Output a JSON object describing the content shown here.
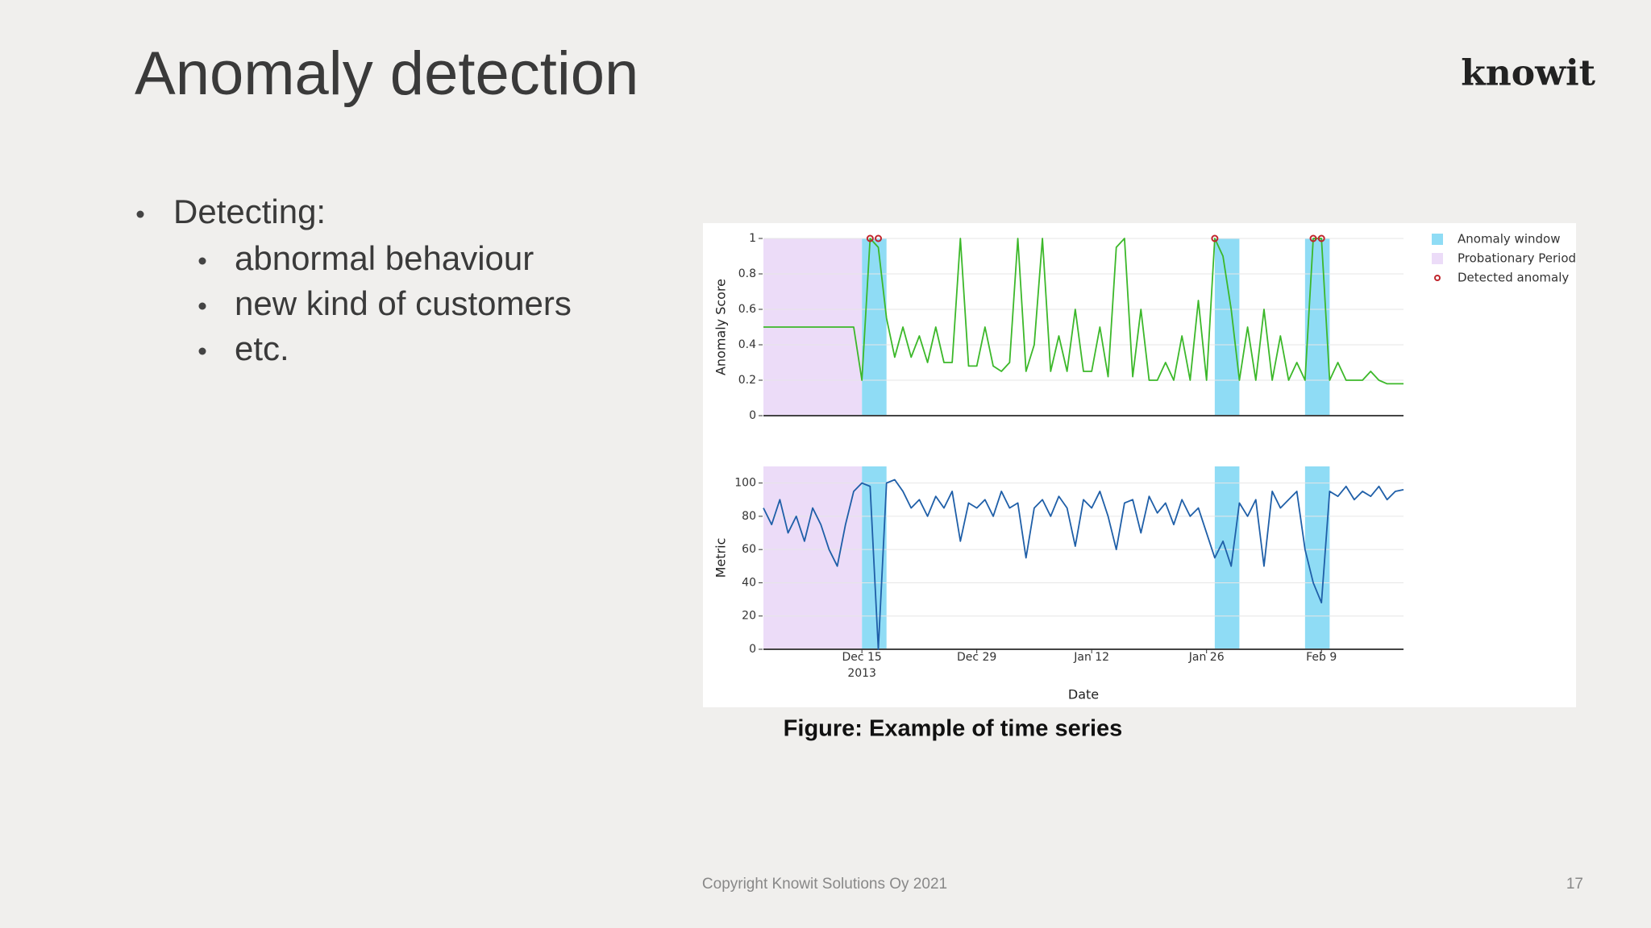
{
  "slide": {
    "title": "Anomaly detection",
    "logo": "knowit",
    "bullets": [
      {
        "text": "Detecting:",
        "items": [
          "abnormal behaviour",
          "new kind of customers",
          "etc."
        ]
      }
    ],
    "caption": "Figure: Example of time series",
    "footer": "Copyright Knowit Solutions Oy 2021",
    "page_number": 17
  },
  "chart_data": [
    {
      "type": "line",
      "ylabel": "Anomaly Score",
      "color": "#3cb82a",
      "legend": "right",
      "xlim": [
        "2013-12-03",
        "2014-02-19"
      ],
      "ylim": [
        0,
        1
      ],
      "yticks": [
        0,
        0.2,
        0.4,
        0.6,
        0.8,
        1
      ],
      "grid": true,
      "regions": [
        {
          "name": "Anomaly window",
          "color": "#8fdcf5",
          "spans": [
            [
              "2013-12-15",
              "2013-12-18"
            ],
            [
              "2014-01-27",
              "2014-01-30"
            ],
            [
              "2014-02-07",
              "2014-02-10"
            ]
          ]
        },
        {
          "name": "Probationary Period",
          "color": "#ecdcf8",
          "spans": [
            [
              "2013-12-03",
              "2013-12-15"
            ]
          ]
        }
      ],
      "markers": {
        "name": "Detected anomaly",
        "color": "#c0262d",
        "x": [
          "2013-12-16",
          "2013-12-17",
          "2014-01-27",
          "2014-02-08",
          "2014-02-09"
        ],
        "values": [
          1,
          1,
          1,
          1,
          1
        ]
      },
      "x": [
        "2013-12-03",
        "2013-12-04",
        "2013-12-05",
        "2013-12-06",
        "2013-12-07",
        "2013-12-08",
        "2013-12-09",
        "2013-12-10",
        "2013-12-11",
        "2013-12-12",
        "2013-12-13",
        "2013-12-14",
        "2013-12-15",
        "2013-12-16",
        "2013-12-17",
        "2013-12-18",
        "2013-12-19",
        "2013-12-20",
        "2013-12-21",
        "2013-12-22",
        "2013-12-23",
        "2013-12-24",
        "2013-12-25",
        "2013-12-26",
        "2013-12-27",
        "2013-12-28",
        "2013-12-29",
        "2013-12-30",
        "2013-12-31",
        "2014-01-01",
        "2014-01-02",
        "2014-01-03",
        "2014-01-04",
        "2014-01-05",
        "2014-01-06",
        "2014-01-07",
        "2014-01-08",
        "2014-01-09",
        "2014-01-10",
        "2014-01-11",
        "2014-01-12",
        "2014-01-13",
        "2014-01-14",
        "2014-01-15",
        "2014-01-16",
        "2014-01-17",
        "2014-01-18",
        "2014-01-19",
        "2014-01-20",
        "2014-01-21",
        "2014-01-22",
        "2014-01-23",
        "2014-01-24",
        "2014-01-25",
        "2014-01-26",
        "2014-01-27",
        "2014-01-28",
        "2014-01-29",
        "2014-01-30",
        "2014-01-31",
        "2014-02-01",
        "2014-02-02",
        "2014-02-03",
        "2014-02-04",
        "2014-02-05",
        "2014-02-06",
        "2014-02-07",
        "2014-02-08",
        "2014-02-09",
        "2014-02-10",
        "2014-02-11",
        "2014-02-12",
        "2014-02-13",
        "2014-02-14",
        "2014-02-15",
        "2014-02-16",
        "2014-02-17",
        "2014-02-18",
        "2014-02-19"
      ],
      "values": [
        0.5,
        0.5,
        0.5,
        0.5,
        0.5,
        0.5,
        0.5,
        0.5,
        0.5,
        0.5,
        0.5,
        0.5,
        0.2,
        1,
        0.95,
        0.55,
        0.33,
        0.5,
        0.33,
        0.45,
        0.3,
        0.5,
        0.3,
        0.3,
        1,
        0.28,
        0.28,
        0.5,
        0.28,
        0.25,
        0.3,
        1,
        0.25,
        0.4,
        1,
        0.25,
        0.45,
        0.25,
        0.6,
        0.25,
        0.25,
        0.5,
        0.22,
        0.95,
        1,
        0.22,
        0.6,
        0.2,
        0.2,
        0.3,
        0.2,
        0.45,
        0.2,
        0.65,
        0.2,
        1,
        0.9,
        0.6,
        0.2,
        0.5,
        0.2,
        0.6,
        0.2,
        0.45,
        0.2,
        0.3,
        0.2,
        1,
        1,
        0.2,
        0.3,
        0.2,
        0.2,
        0.2,
        0.25,
        0.2,
        0.18,
        0.18,
        0.18
      ]
    },
    {
      "type": "line",
      "ylabel": "Metric",
      "xlabel": "Date",
      "color": "#1f5fa8",
      "xlim": [
        "2013-12-03",
        "2014-02-19"
      ],
      "ylim": [
        0,
        110
      ],
      "yticks": [
        0,
        20,
        40,
        60,
        80,
        100
      ],
      "grid": true,
      "xticks": [
        {
          "value": "2013-12-15",
          "label": "Dec 15 2013"
        },
        {
          "value": "2013-12-29",
          "label": "Dec 29"
        },
        {
          "value": "2014-01-12",
          "label": "Jan 12"
        },
        {
          "value": "2014-01-26",
          "label": "Jan 26"
        },
        {
          "value": "2014-02-09",
          "label": "Feb 9"
        }
      ],
      "regions": [
        {
          "color": "#8fdcf5",
          "spans": [
            [
              "2013-12-15",
              "2013-12-18"
            ],
            [
              "2014-01-27",
              "2014-01-30"
            ],
            [
              "2014-02-07",
              "2014-02-10"
            ]
          ]
        },
        {
          "color": "#ecdcf8",
          "spans": [
            [
              "2013-12-03",
              "2013-12-15"
            ]
          ]
        }
      ],
      "x": [
        "2013-12-03",
        "2013-12-04",
        "2013-12-05",
        "2013-12-06",
        "2013-12-07",
        "2013-12-08",
        "2013-12-09",
        "2013-12-10",
        "2013-12-11",
        "2013-12-12",
        "2013-12-13",
        "2013-12-14",
        "2013-12-15",
        "2013-12-16",
        "2013-12-17",
        "2013-12-18",
        "2013-12-19",
        "2013-12-20",
        "2013-12-21",
        "2013-12-22",
        "2013-12-23",
        "2013-12-24",
        "2013-12-25",
        "2013-12-26",
        "2013-12-27",
        "2013-12-28",
        "2013-12-29",
        "2013-12-30",
        "2013-12-31",
        "2014-01-01",
        "2014-01-02",
        "2014-01-03",
        "2014-01-04",
        "2014-01-05",
        "2014-01-06",
        "2014-01-07",
        "2014-01-08",
        "2014-01-09",
        "2014-01-10",
        "2014-01-11",
        "2014-01-12",
        "2014-01-13",
        "2014-01-14",
        "2014-01-15",
        "2014-01-16",
        "2014-01-17",
        "2014-01-18",
        "2014-01-19",
        "2014-01-20",
        "2014-01-21",
        "2014-01-22",
        "2014-01-23",
        "2014-01-24",
        "2014-01-25",
        "2014-01-26",
        "2014-01-27",
        "2014-01-28",
        "2014-01-29",
        "2014-01-30",
        "2014-01-31",
        "2014-02-01",
        "2014-02-02",
        "2014-02-03",
        "2014-02-04",
        "2014-02-05",
        "2014-02-06",
        "2014-02-07",
        "2014-02-08",
        "2014-02-09",
        "2014-02-10",
        "2014-02-11",
        "2014-02-12",
        "2014-02-13",
        "2014-02-14",
        "2014-02-15",
        "2014-02-16",
        "2014-02-17",
        "2014-02-18",
        "2014-02-19"
      ],
      "values": [
        85,
        75,
        90,
        70,
        80,
        65,
        85,
        75,
        60,
        50,
        75,
        95,
        100,
        98,
        0,
        100,
        102,
        95,
        85,
        90,
        80,
        92,
        85,
        95,
        65,
        88,
        85,
        90,
        80,
        95,
        85,
        88,
        55,
        85,
        90,
        80,
        92,
        85,
        62,
        90,
        85,
        95,
        80,
        60,
        88,
        90,
        70,
        92,
        82,
        88,
        75,
        90,
        80,
        85,
        70,
        55,
        65,
        50,
        88,
        80,
        90,
        50,
        95,
        85,
        90,
        95,
        60,
        40,
        28,
        95,
        92,
        98,
        90,
        95,
        92,
        98,
        90,
        95,
        96
      ]
    }
  ]
}
